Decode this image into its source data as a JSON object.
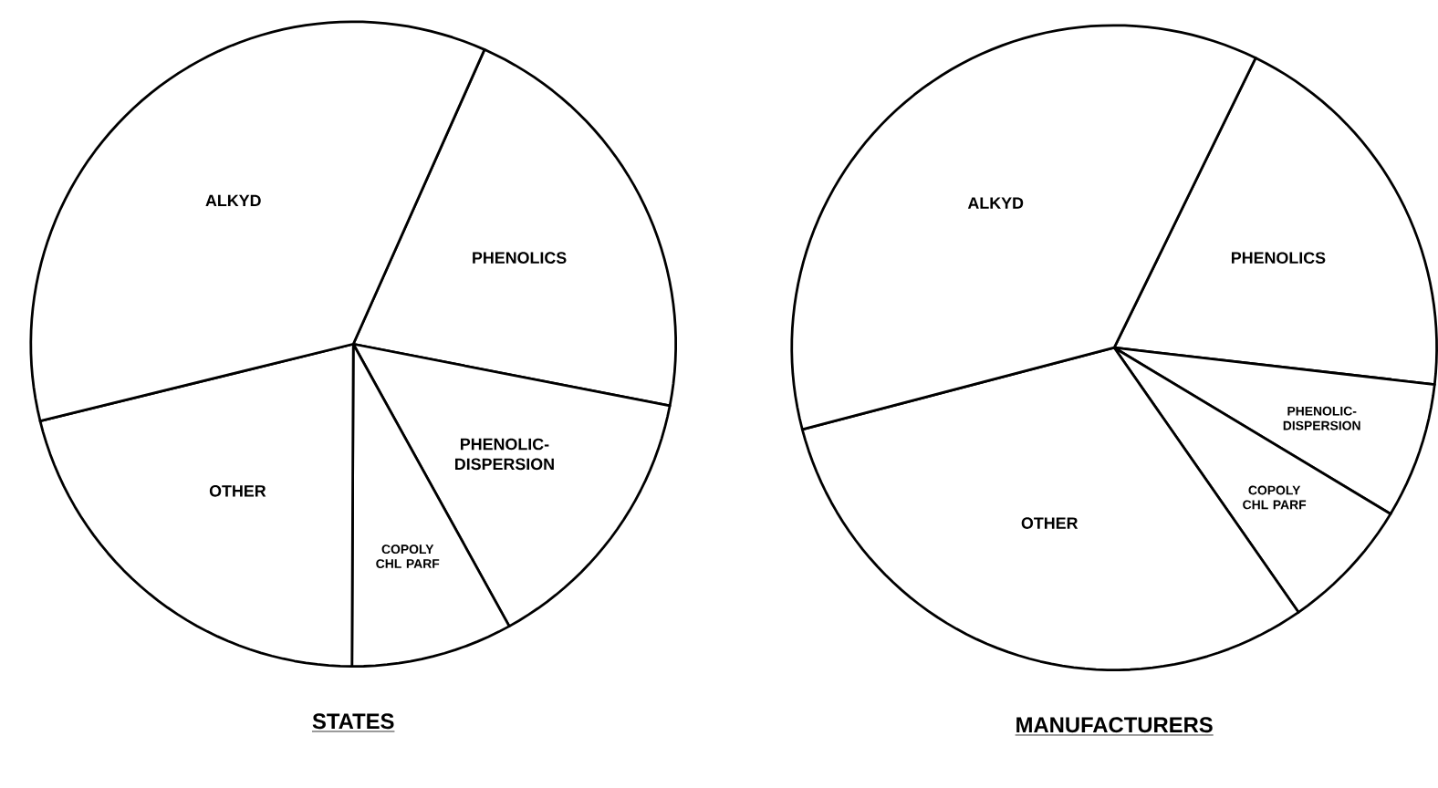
{
  "chart_data": [
    {
      "type": "pie",
      "title": "STATES",
      "categories": [
        "PHENOLICS",
        "PHENOLIC-DISPERSION",
        "COPOLY CHL PARF",
        "OTHER",
        "ALKYD"
      ],
      "values": [
        21.4,
        13.9,
        8.1,
        21.1,
        35.5
      ],
      "colors": [
        "#ffffff",
        "#ffffff",
        "#ffffff",
        "#ffffff",
        "#ffffff"
      ]
    },
    {
      "type": "pie",
      "title": "MANUFACTURERS",
      "categories": [
        "PHENOLICS",
        "PHENOLIC-DISPERSION",
        "COPOLY CHL PARF",
        "OTHER",
        "ALKYD"
      ],
      "values": [
        19.6,
        6.8,
        6.7,
        30.6,
        36.3
      ],
      "colors": [
        "#ffffff",
        "#ffffff",
        "#ffffff",
        "#ffffff",
        "#ffffff"
      ]
    }
  ]
}
